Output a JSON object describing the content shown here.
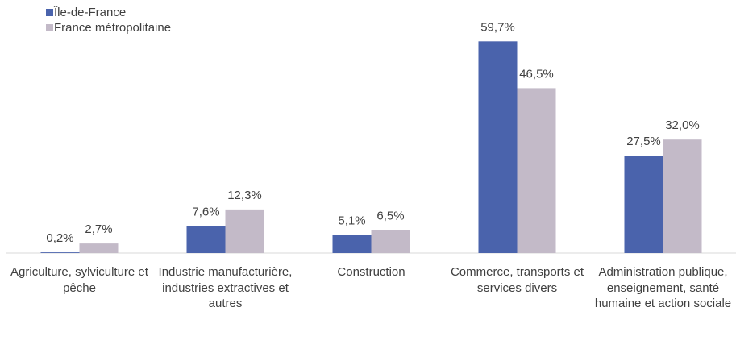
{
  "chart_data": {
    "type": "bar",
    "categories": [
      "Agriculture, sylviculture et pêche",
      "Industrie manufacturière, industries extractives et autres",
      "Construction",
      "Commerce, transports et services divers",
      "Administration publique, enseignement, santé humaine et action sociale"
    ],
    "series": [
      {
        "name": "Île-de-France",
        "color": "#4a63ac",
        "values": [
          0.2,
          7.6,
          5.1,
          59.7,
          27.5
        ],
        "value_labels": [
          "0,2%",
          "7,6%",
          "5,1%",
          "59,7%",
          "27,5%"
        ]
      },
      {
        "name": "France métropolitaine",
        "color": "#c3bac8",
        "values": [
          2.7,
          12.3,
          6.5,
          46.5,
          32.0
        ],
        "value_labels": [
          "2,7%",
          "12,3%",
          "6,5%",
          "46,5%",
          "32,0%"
        ]
      }
    ],
    "ylim": [
      0,
      60
    ],
    "legend": "top-left"
  }
}
